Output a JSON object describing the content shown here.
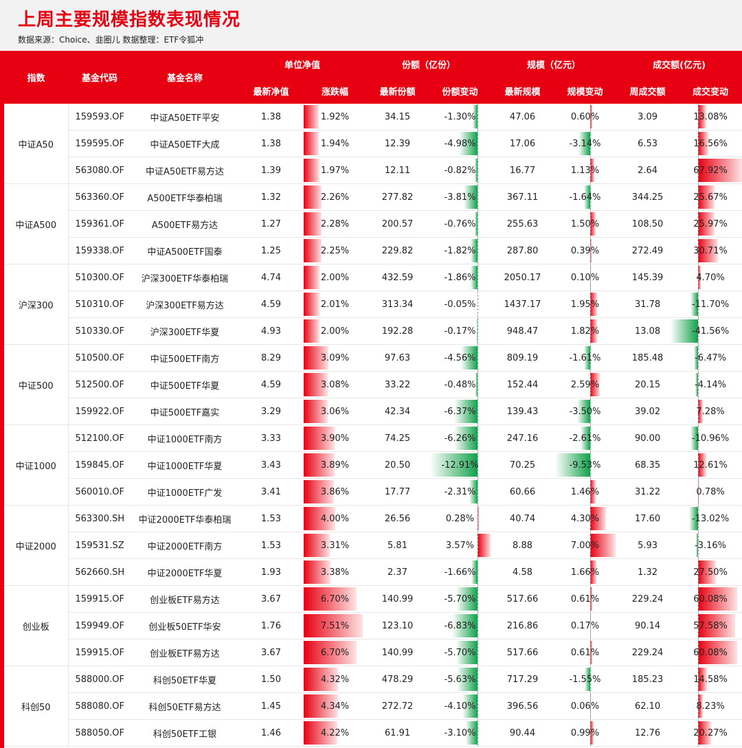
{
  "title": "上周主要规模指数表现情况",
  "source": "数据来源：Choice、韭圈儿  数据整理：ETF令狐冲",
  "headers": {
    "index": "指数",
    "code": "基金代码",
    "name": "基金名称",
    "g_nav": "单位净值",
    "g_share": "份额（亿份）",
    "g_scale": "规模（亿元）",
    "g_turnover": "成交额(亿元)",
    "nav": "最新净值",
    "pct": "涨跌幅",
    "share": "最新份额",
    "share_chg": "份额变动",
    "scale": "最新规模",
    "scale_chg": "规模变动",
    "turnover": "周成交额",
    "turnover_chg": "成交变动"
  },
  "groups": [
    {
      "name": "中证A50",
      "rows": [
        {
          "code": "159593.OF",
          "name": "中证A50ETF平安",
          "nav": "1.38",
          "pct": "1.92%",
          "share": "34.15",
          "share_chg": "-1.30%",
          "scale": "47.06",
          "scale_chg": "0.60%",
          "turnover": "3.09",
          "turnover_chg": "13.08%"
        },
        {
          "code": "159595.OF",
          "name": "中证A50ETF大成",
          "nav": "1.38",
          "pct": "1.94%",
          "share": "12.39",
          "share_chg": "-4.98%",
          "scale": "17.06",
          "scale_chg": "-3.14%",
          "turnover": "6.53",
          "turnover_chg": "16.56%"
        },
        {
          "code": "563080.OF",
          "name": "中证A50ETF易方达",
          "nav": "1.39",
          "pct": "1.97%",
          "share": "12.11",
          "share_chg": "-0.82%",
          "scale": "16.77",
          "scale_chg": "1.13%",
          "turnover": "2.64",
          "turnover_chg": "67.92%"
        }
      ]
    },
    {
      "name": "中证A500",
      "rows": [
        {
          "code": "563360.OF",
          "name": "A500ETF华泰柏瑞",
          "nav": "1.32",
          "pct": "2.26%",
          "share": "277.82",
          "share_chg": "-3.81%",
          "scale": "367.11",
          "scale_chg": "-1.64%",
          "turnover": "344.25",
          "turnover_chg": "25.67%"
        },
        {
          "code": "159361.OF",
          "name": "A500ETF易方达",
          "nav": "1.27",
          "pct": "2.28%",
          "share": "200.57",
          "share_chg": "-0.76%",
          "scale": "255.63",
          "scale_chg": "1.50%",
          "turnover": "108.50",
          "turnover_chg": "25.97%"
        },
        {
          "code": "159338.OF",
          "name": "中证A500ETF国泰",
          "nav": "1.25",
          "pct": "2.25%",
          "share": "229.82",
          "share_chg": "-1.82%",
          "scale": "287.80",
          "scale_chg": "0.39%",
          "turnover": "272.49",
          "turnover_chg": "30.71%"
        }
      ]
    },
    {
      "name": "沪深300",
      "rows": [
        {
          "code": "510300.OF",
          "name": "沪深300ETF华泰柏瑞",
          "nav": "4.74",
          "pct": "2.00%",
          "share": "432.59",
          "share_chg": "-1.86%",
          "scale": "2050.17",
          "scale_chg": "0.10%",
          "turnover": "145.39",
          "turnover_chg": "4.70%"
        },
        {
          "code": "510310.OF",
          "name": "沪深300ETF易方达",
          "nav": "4.59",
          "pct": "2.01%",
          "share": "313.34",
          "share_chg": "-0.05%",
          "scale": "1437.17",
          "scale_chg": "1.95%",
          "turnover": "31.78",
          "turnover_chg": "-11.70%"
        },
        {
          "code": "510330.OF",
          "name": "沪深300ETF华夏",
          "nav": "4.93",
          "pct": "2.00%",
          "share": "192.28",
          "share_chg": "-0.17%",
          "scale": "948.47",
          "scale_chg": "1.82%",
          "turnover": "13.08",
          "turnover_chg": "-41.56%"
        }
      ]
    },
    {
      "name": "中证500",
      "rows": [
        {
          "code": "510500.OF",
          "name": "中证500ETF南方",
          "nav": "8.29",
          "pct": "3.09%",
          "share": "97.63",
          "share_chg": "-4.56%",
          "scale": "809.19",
          "scale_chg": "-1.61%",
          "turnover": "185.48",
          "turnover_chg": "-6.47%"
        },
        {
          "code": "512500.OF",
          "name": "中证500ETF华夏",
          "nav": "4.59",
          "pct": "3.08%",
          "share": "33.22",
          "share_chg": "-0.48%",
          "scale": "152.44",
          "scale_chg": "2.59%",
          "turnover": "20.15",
          "turnover_chg": "-4.14%"
        },
        {
          "code": "159922.OF",
          "name": "中证500ETF嘉实",
          "nav": "3.29",
          "pct": "3.06%",
          "share": "42.34",
          "share_chg": "-6.37%",
          "scale": "139.43",
          "scale_chg": "-3.50%",
          "turnover": "39.02",
          "turnover_chg": "7.28%"
        }
      ]
    },
    {
      "name": "中证1000",
      "rows": [
        {
          "code": "512100.OF",
          "name": "中证1000ETF南方",
          "nav": "3.33",
          "pct": "3.90%",
          "share": "74.25",
          "share_chg": "-6.26%",
          "scale": "247.16",
          "scale_chg": "-2.61%",
          "turnover": "90.00",
          "turnover_chg": "-10.96%"
        },
        {
          "code": "159845.OF",
          "name": "中证1000ETF华夏",
          "nav": "3.43",
          "pct": "3.89%",
          "share": "20.50",
          "share_chg": "-12.91%",
          "scale": "70.25",
          "scale_chg": "-9.53%",
          "turnover": "68.35",
          "turnover_chg": "12.61%"
        },
        {
          "code": "560010.OF",
          "name": "中证1000ETF广发",
          "nav": "3.41",
          "pct": "3.86%",
          "share": "17.77",
          "share_chg": "-2.31%",
          "scale": "60.66",
          "scale_chg": "1.46%",
          "turnover": "31.22",
          "turnover_chg": "0.78%"
        }
      ]
    },
    {
      "name": "中证2000",
      "rows": [
        {
          "code": "563300.SH",
          "name": "中证2000ETF华泰柏瑞",
          "nav": "1.53",
          "pct": "4.00%",
          "share": "26.56",
          "share_chg": "0.28%",
          "scale": "40.74",
          "scale_chg": "4.30%",
          "turnover": "17.60",
          "turnover_chg": "-13.02%"
        },
        {
          "code": "159531.SZ",
          "name": "中证2000ETF南方",
          "nav": "1.53",
          "pct": "3.31%",
          "share": "5.81",
          "share_chg": "3.57%",
          "scale": "8.88",
          "scale_chg": "7.00%",
          "turnover": "5.93",
          "turnover_chg": "-3.16%"
        },
        {
          "code": "562660.SH",
          "name": "中证2000ETF华夏",
          "nav": "1.93",
          "pct": "3.38%",
          "share": "2.37",
          "share_chg": "-1.66%",
          "scale": "4.58",
          "scale_chg": "1.66%",
          "turnover": "1.32",
          "turnover_chg": "27.50%"
        }
      ]
    },
    {
      "name": "创业板",
      "rows": [
        {
          "code": "159915.OF",
          "name": "创业板ETF易方达",
          "nav": "3.67",
          "pct": "6.70%",
          "share": "140.99",
          "share_chg": "-5.70%",
          "scale": "517.66",
          "scale_chg": "0.61%",
          "turnover": "229.24",
          "turnover_chg": "60.08%"
        },
        {
          "code": "159949.OF",
          "name": "创业板50ETF华安",
          "nav": "1.76",
          "pct": "7.51%",
          "share": "123.10",
          "share_chg": "-6.83%",
          "scale": "216.86",
          "scale_chg": "0.17%",
          "turnover": "90.14",
          "turnover_chg": "57.58%"
        },
        {
          "code": "159915.OF",
          "name": "创业板ETF易方达",
          "nav": "3.67",
          "pct": "6.70%",
          "share": "140.99",
          "share_chg": "-5.70%",
          "scale": "517.66",
          "scale_chg": "0.61%",
          "turnover": "229.24",
          "turnover_chg": "60.08%"
        }
      ]
    },
    {
      "name": "科创50",
      "rows": [
        {
          "code": "588000.OF",
          "name": "科创50ETF华夏",
          "nav": "1.50",
          "pct": "4.32%",
          "share": "478.29",
          "share_chg": "-5.63%",
          "scale": "717.29",
          "scale_chg": "-1.55%",
          "turnover": "185.23",
          "turnover_chg": "14.58%"
        },
        {
          "code": "588080.OF",
          "name": "科创50ETF易方达",
          "nav": "1.45",
          "pct": "4.34%",
          "share": "272.72",
          "share_chg": "-4.10%",
          "scale": "396.56",
          "scale_chg": "0.06%",
          "turnover": "62.10",
          "turnover_chg": "8.23%"
        },
        {
          "code": "588050.OF",
          "name": "科创50ETF工银",
          "nav": "1.46",
          "pct": "4.22%",
          "share": "61.91",
          "share_chg": "-3.10%",
          "scale": "90.44",
          "scale_chg": "0.99%",
          "turnover": "12.76",
          "turnover_chg": "20.27%"
        }
      ]
    }
  ]
}
